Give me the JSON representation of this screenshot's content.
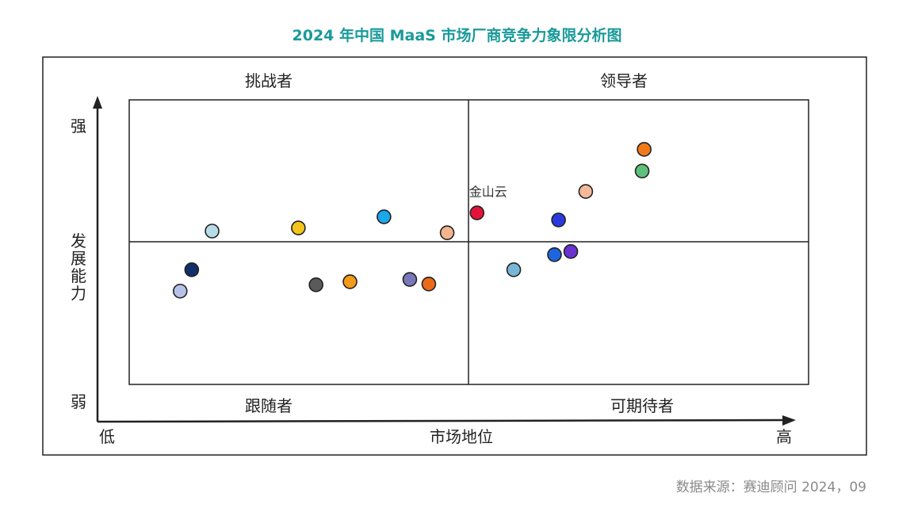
{
  "title": "2024 年中国 MaaS 市场厂商竞争力象限分析图",
  "source": "数据来源：赛迪顾问   2024，09",
  "chart_data": {
    "type": "scatter",
    "x_axis": {
      "label": "市场地位",
      "low": "低",
      "high": "高",
      "range": [
        0,
        100
      ]
    },
    "y_axis": {
      "label": "发展能力",
      "low": "弱",
      "high": "强",
      "range": [
        0,
        100
      ]
    },
    "quadrants": {
      "top_left": "挑战者",
      "top_right": "领导者",
      "bottom_left": "跟随者",
      "bottom_right": "可期待者"
    },
    "points": [
      {
        "x": 75.8,
        "y": 82.6,
        "color": "#f07a1a",
        "label": ""
      },
      {
        "x": 75.5,
        "y": 75.0,
        "color": "#5ec07a",
        "label": ""
      },
      {
        "x": 67.2,
        "y": 67.8,
        "color": "#f4b89a",
        "label": ""
      },
      {
        "x": 51.2,
        "y": 60.3,
        "color": "#e4123a",
        "label": "金山云"
      },
      {
        "x": 63.2,
        "y": 57.8,
        "color": "#2a3ae0",
        "label": ""
      },
      {
        "x": 65.0,
        "y": 46.7,
        "color": "#6a32d0",
        "label": ""
      },
      {
        "x": 62.6,
        "y": 45.6,
        "color": "#1e66e0",
        "label": ""
      },
      {
        "x": 56.6,
        "y": 40.3,
        "color": "#78b6d6",
        "label": ""
      },
      {
        "x": 37.5,
        "y": 58.9,
        "color": "#1aa8ec",
        "label": ""
      },
      {
        "x": 46.8,
        "y": 53.3,
        "color": "#f4b48e",
        "label": ""
      },
      {
        "x": 24.9,
        "y": 55.0,
        "color": "#f2c41e",
        "label": ""
      },
      {
        "x": 12.2,
        "y": 53.9,
        "color": "#b6dce8",
        "label": ""
      },
      {
        "x": 9.2,
        "y": 40.3,
        "color": "#10306a",
        "label": ""
      },
      {
        "x": 7.5,
        "y": 32.8,
        "color": "#b6c2e8",
        "label": ""
      },
      {
        "x": 27.5,
        "y": 35.0,
        "color": "#5a5a5a",
        "label": ""
      },
      {
        "x": 32.5,
        "y": 36.1,
        "color": "#f49a1a",
        "label": ""
      },
      {
        "x": 41.3,
        "y": 36.9,
        "color": "#7878ba",
        "label": ""
      },
      {
        "x": 44.1,
        "y": 35.3,
        "color": "#ea6a1a",
        "label": ""
      }
    ]
  }
}
